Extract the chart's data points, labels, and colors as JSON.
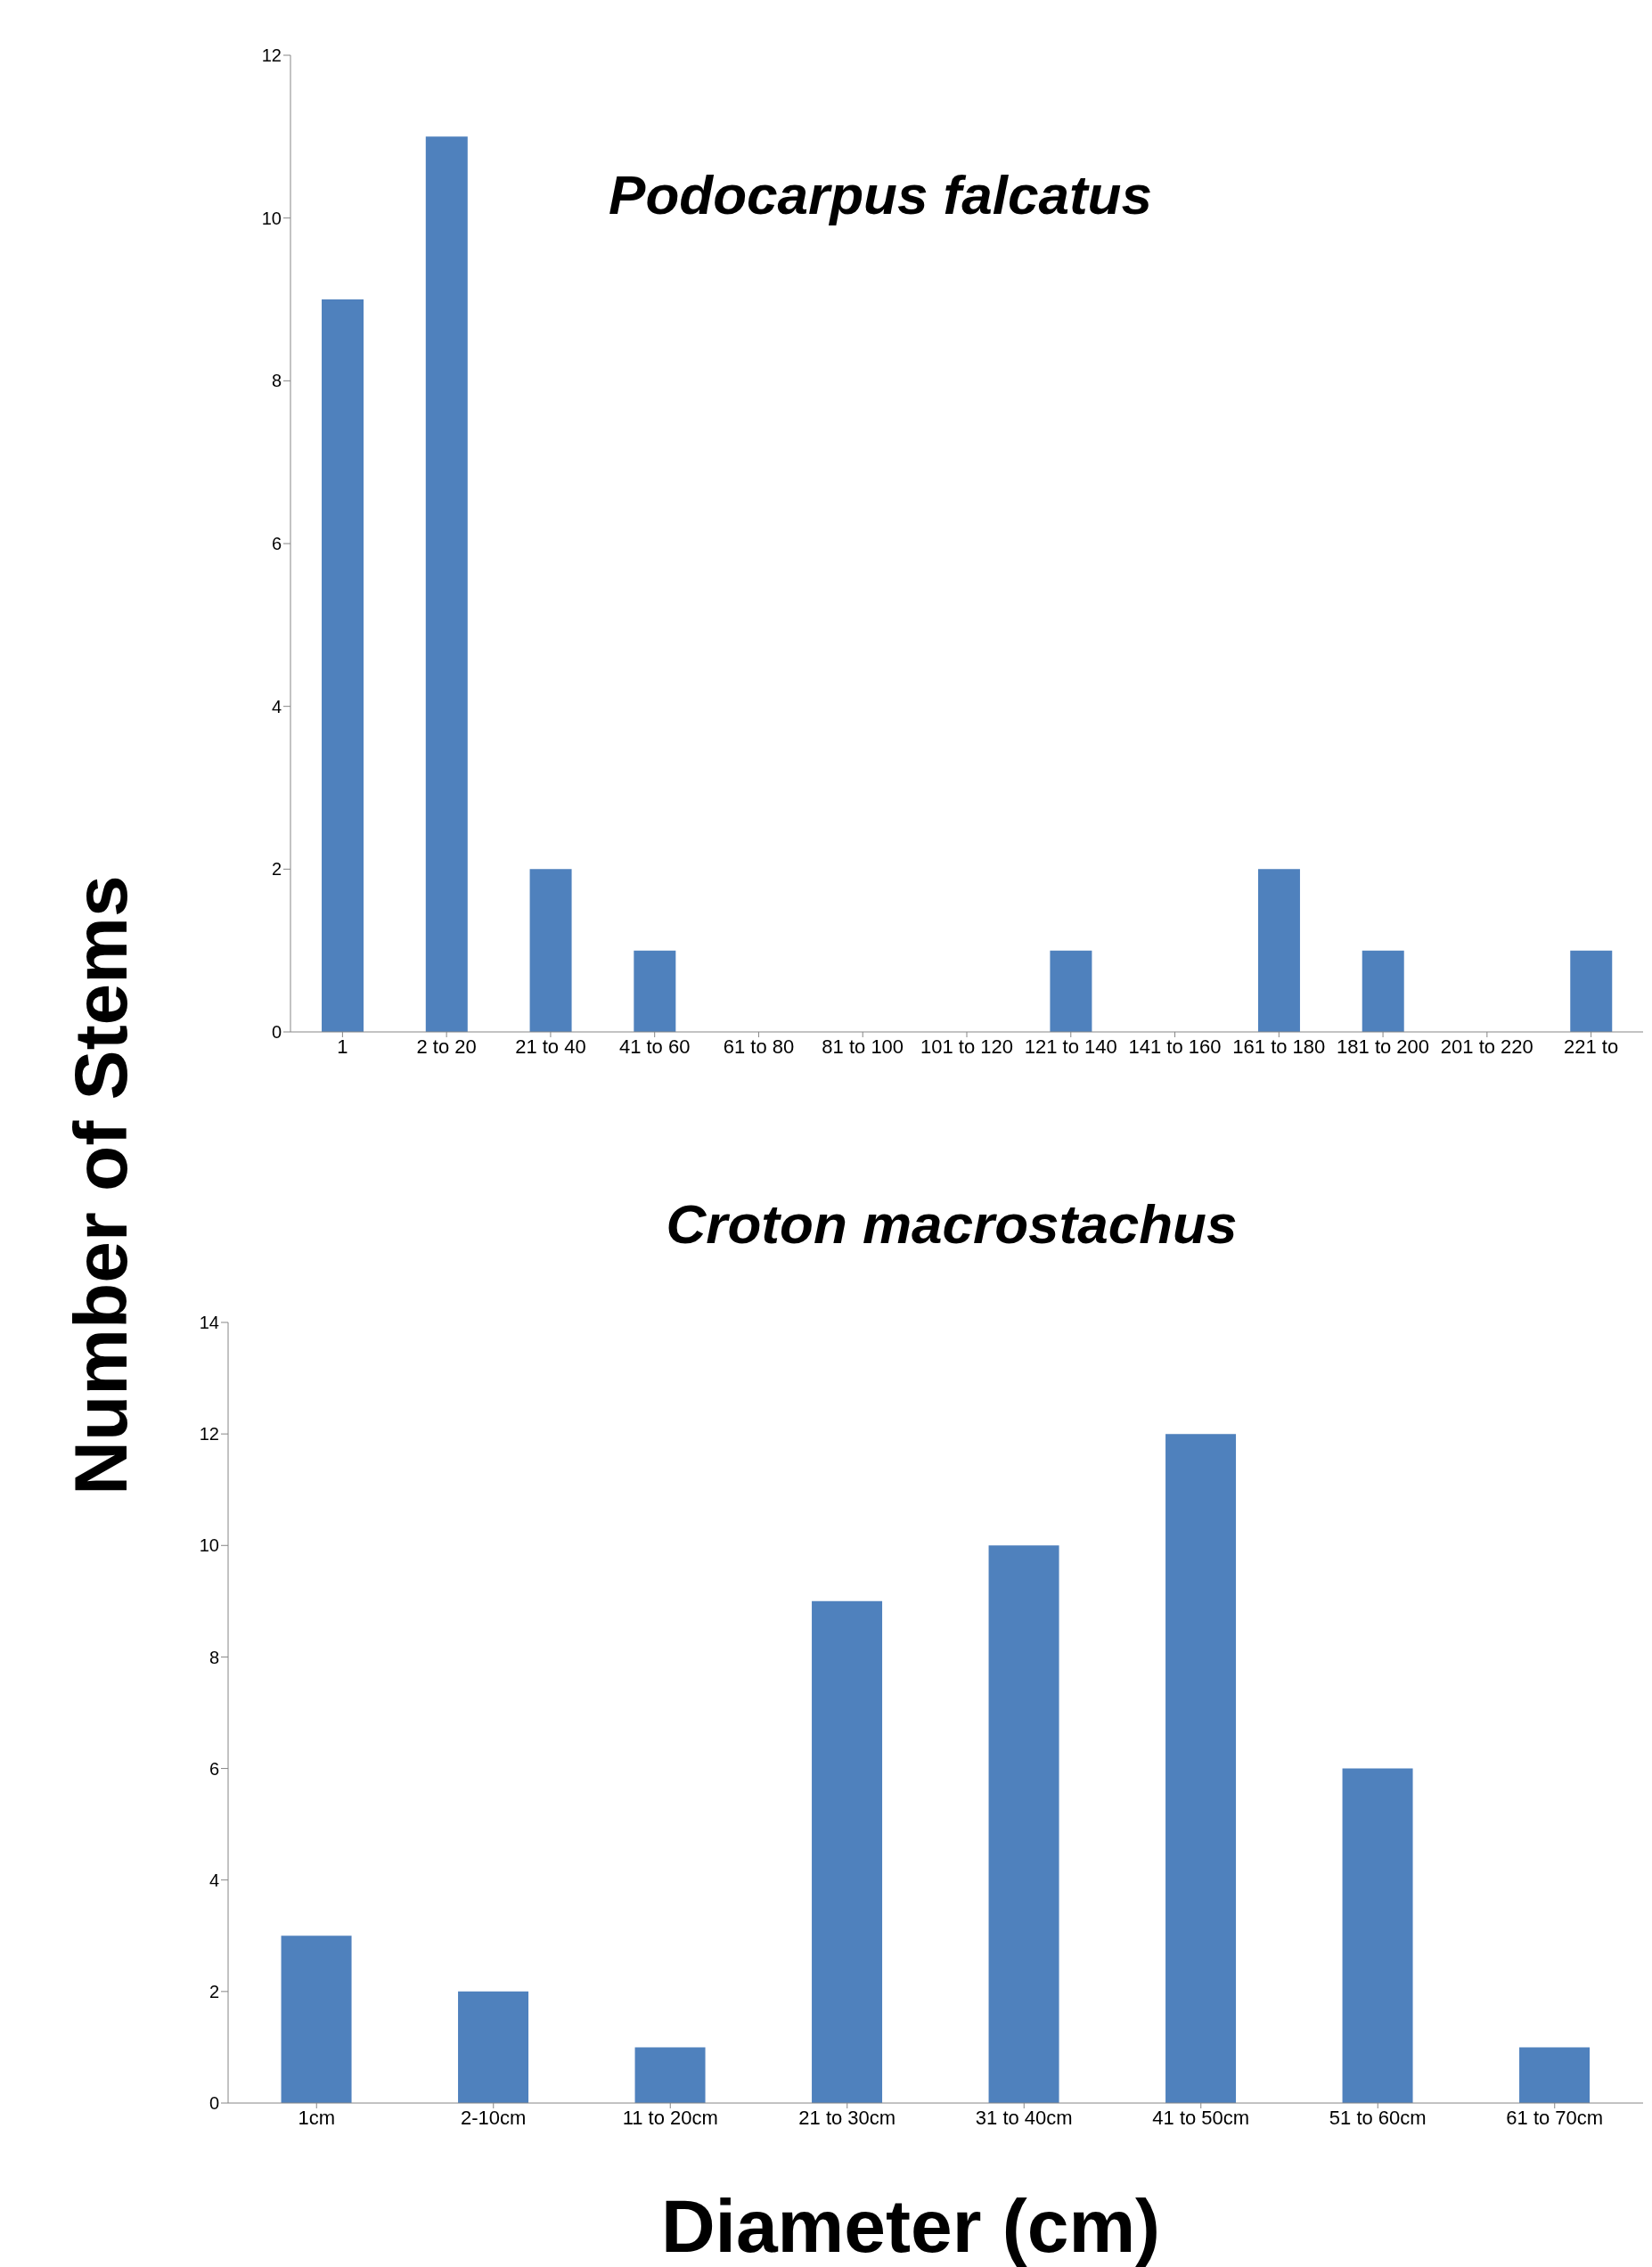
{
  "chart_data": [
    {
      "type": "bar",
      "title": "Podocarpus falcatus",
      "ylabel": "Number of Stems",
      "categories": [
        "1",
        "2 to 20",
        "21 to 40",
        "41 to 60",
        "61 to 80",
        "81 to 100",
        "101 to 120",
        "121 to 140",
        "141 to 160",
        "161 to 180",
        "181 to 200",
        "201 to 220",
        "221 to"
      ],
      "values": [
        9,
        11,
        2,
        1,
        0,
        0,
        0,
        1,
        0,
        2,
        1,
        0,
        1
      ],
      "color": "#4f81bd",
      "ylim": [
        0,
        12
      ],
      "yticks": [
        0,
        2,
        4,
        6,
        8,
        10,
        12
      ],
      "grid": false,
      "legend": false
    },
    {
      "type": "bar",
      "title": "Croton macrostachus",
      "xlabel": "Diameter (cm)",
      "categories": [
        "1cm",
        "2-10cm",
        "11 to 20cm",
        "21 to 30cm",
        "31 to 40cm",
        "41 to 50cm",
        "51 to 60cm",
        "61 to 70cm"
      ],
      "values": [
        3,
        2,
        1,
        9,
        10,
        12,
        6,
        1
      ],
      "color": "#4f81bd",
      "ylim": [
        0,
        14
      ],
      "yticks": [
        0,
        2,
        4,
        6,
        8,
        10,
        12,
        14
      ],
      "grid": false,
      "legend": false
    }
  ]
}
